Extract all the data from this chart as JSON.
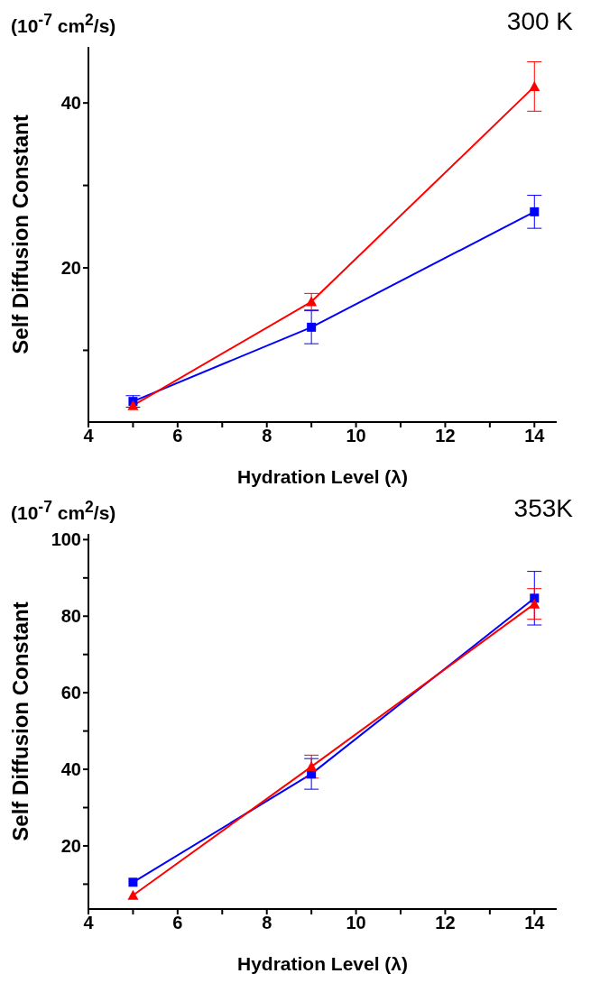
{
  "chart_data": [
    {
      "type": "line",
      "title": "300 K",
      "xlabel": "Hydration Level (λ)",
      "ylabel": "Self Diffusion Constant",
      "annotations": [
        "(10$^{-7}$ cm$^{2}$/s)"
      ],
      "x": [
        5,
        9,
        14
      ],
      "series": [
        {
          "color": "#0000ff",
          "marker": "square",
          "values": [
            3.8,
            12.8,
            26.8
          ],
          "errors": [
            0.7,
            2,
            2
          ]
        },
        {
          "color": "#ff0000",
          "marker": "triangle",
          "values": [
            3.3,
            15.9,
            42
          ],
          "errors": [
            null,
            1,
            3
          ]
        }
      ],
      "xlim": [
        4,
        14.5
      ],
      "xticks": [
        4,
        {
          "value": 5,
          "label": null
        },
        6,
        {
          "value": 7,
          "label": null
        },
        8,
        {
          "value": 9,
          "label": null
        },
        10,
        {
          "value": 11,
          "label": null
        },
        12,
        {
          "value": 13,
          "label": null
        },
        14
      ],
      "ylim": [
        1.3,
        46.8
      ],
      "yticks": [
        {
          "value": 10,
          "label": null
        },
        20,
        {
          "value": 30,
          "label": null
        },
        40
      ]
    },
    {
      "type": "line",
      "title": "353K",
      "xlabel": "Hydration Level (λ)",
      "ylabel": "Self Diffusion Constant",
      "annotations": [
        "(10$^{-7}$ cm$^{2}$/s)"
      ],
      "x": [
        5,
        9,
        14
      ],
      "series": [
        {
          "color": "#0000ff",
          "marker": "square",
          "values": [
            10.5,
            38.8,
            84.7
          ],
          "errors": [
            null,
            4,
            7
          ]
        },
        {
          "color": "#ff0000",
          "marker": "triangle",
          "values": [
            7.1,
            40.7,
            83.2
          ],
          "errors": [
            null,
            3,
            4
          ]
        }
      ],
      "xlim": [
        4,
        14.5
      ],
      "xticks": [
        4,
        {
          "value": 5,
          "label": null
        },
        6,
        {
          "value": 7,
          "label": null
        },
        8,
        {
          "value": 9,
          "label": null
        },
        10,
        {
          "value": 11,
          "label": null
        },
        12,
        {
          "value": 13,
          "label": null
        },
        14
      ],
      "ylim": [
        3.5,
        101.5
      ],
      "yticks": [
        {
          "value": 10,
          "label": null
        },
        20,
        {
          "value": 30,
          "label": null
        },
        40,
        {
          "value": 50,
          "label": null
        },
        60,
        {
          "value": 70,
          "label": null
        },
        80,
        {
          "value": 90,
          "label": null
        },
        100
      ]
    }
  ]
}
